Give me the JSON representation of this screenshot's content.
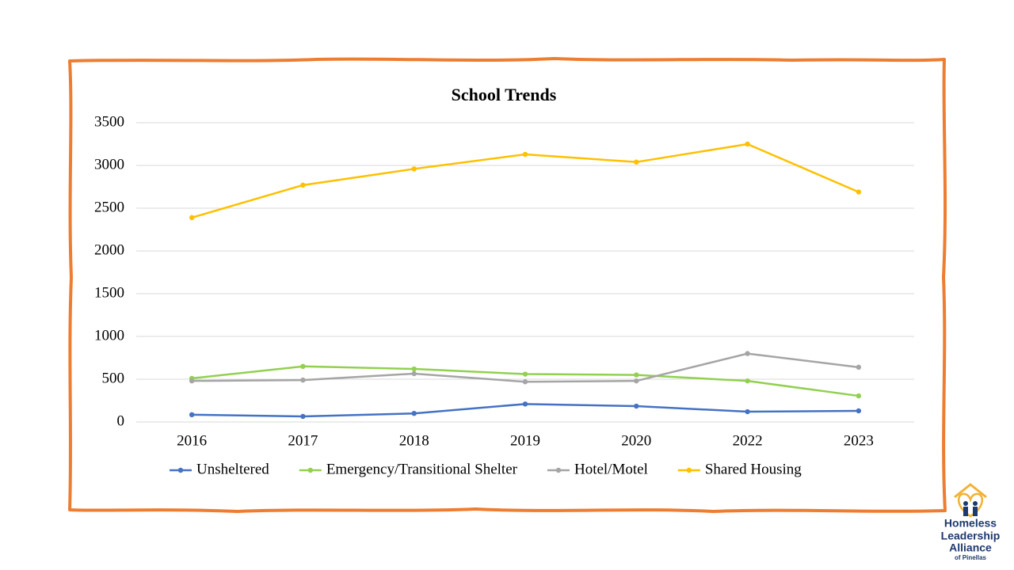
{
  "chart_data": {
    "type": "line",
    "title": "School Trends",
    "categories": [
      "2016",
      "2017",
      "2018",
      "2019",
      "2020",
      "2022",
      "2023"
    ],
    "series": [
      {
        "name": "Unsheltered",
        "color": "#4472c4",
        "values": [
          85,
          65,
          100,
          210,
          185,
          120,
          130
        ]
      },
      {
        "name": "Emergency/Transitional Shelter",
        "color": "#92d050",
        "values": [
          510,
          650,
          620,
          560,
          550,
          480,
          305
        ]
      },
      {
        "name": "Hotel/Motel",
        "color": "#a5a5a5",
        "values": [
          480,
          490,
          565,
          470,
          480,
          800,
          640
        ]
      },
      {
        "name": "Shared Housing",
        "color": "#ffc000",
        "values": [
          2390,
          2770,
          2960,
          3130,
          3040,
          3250,
          2690
        ]
      }
    ],
    "ylim": [
      0,
      3500
    ],
    "yticks": [
      0,
      500,
      1000,
      1500,
      2000,
      2500,
      3000,
      3500
    ],
    "grid": true,
    "legend": "bottom"
  },
  "logo": {
    "lines": [
      "Homeless",
      "Leadership",
      "Alliance",
      "of Pinellas"
    ]
  }
}
